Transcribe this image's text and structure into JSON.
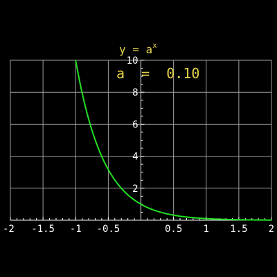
{
  "chart_data": {
    "type": "line",
    "title": {
      "base": "y = a",
      "sup": "x"
    },
    "parameter_label": "a  =  0.10",
    "xlim": [
      -2,
      2
    ],
    "ylim": [
      0,
      10
    ],
    "x_ticks": [
      {
        "value": -2,
        "label": "-2"
      },
      {
        "value": -1.5,
        "label": "-1.5"
      },
      {
        "value": -1,
        "label": "-1"
      },
      {
        "value": -0.5,
        "label": "-0.5"
      },
      {
        "value": 0.5,
        "label": "0.5"
      },
      {
        "value": 1,
        "label": "1"
      },
      {
        "value": 1.5,
        "label": "1.5"
      },
      {
        "value": 2,
        "label": "2"
      }
    ],
    "y_ticks": [
      {
        "value": 2,
        "label": "2"
      },
      {
        "value": 4,
        "label": "4"
      },
      {
        "value": 6,
        "label": "6"
      },
      {
        "value": 8,
        "label": "8"
      },
      {
        "value": 10,
        "label": "10"
      }
    ],
    "grid": true,
    "series": [
      {
        "base": 0.1,
        "points": [
          [
            -1.0,
            10.0
          ],
          [
            -0.9,
            7.94
          ],
          [
            -0.8,
            6.31
          ],
          [
            -0.7,
            5.01
          ],
          [
            -0.6,
            3.98
          ],
          [
            -0.5,
            3.16
          ],
          [
            -0.4,
            2.51
          ],
          [
            -0.3,
            2.0
          ],
          [
            -0.2,
            1.58
          ],
          [
            -0.1,
            1.26
          ],
          [
            0.0,
            1.0
          ],
          [
            0.1,
            0.79
          ],
          [
            0.2,
            0.63
          ],
          [
            0.3,
            0.5
          ],
          [
            0.4,
            0.4
          ],
          [
            0.5,
            0.32
          ],
          [
            0.6,
            0.25
          ],
          [
            0.7,
            0.2
          ],
          [
            0.8,
            0.16
          ],
          [
            0.9,
            0.13
          ],
          [
            1.0,
            0.1
          ],
          [
            1.2,
            0.06
          ],
          [
            1.4,
            0.04
          ],
          [
            1.6,
            0.03
          ],
          [
            1.8,
            0.02
          ],
          [
            2.0,
            0.01
          ]
        ]
      }
    ],
    "colors": {
      "background": "#000000",
      "grid": "#a0a0a0",
      "axes": "#ffffff",
      "curve": "#22e022",
      "text": "#e8d44a",
      "ticks": "#ffffff"
    }
  }
}
